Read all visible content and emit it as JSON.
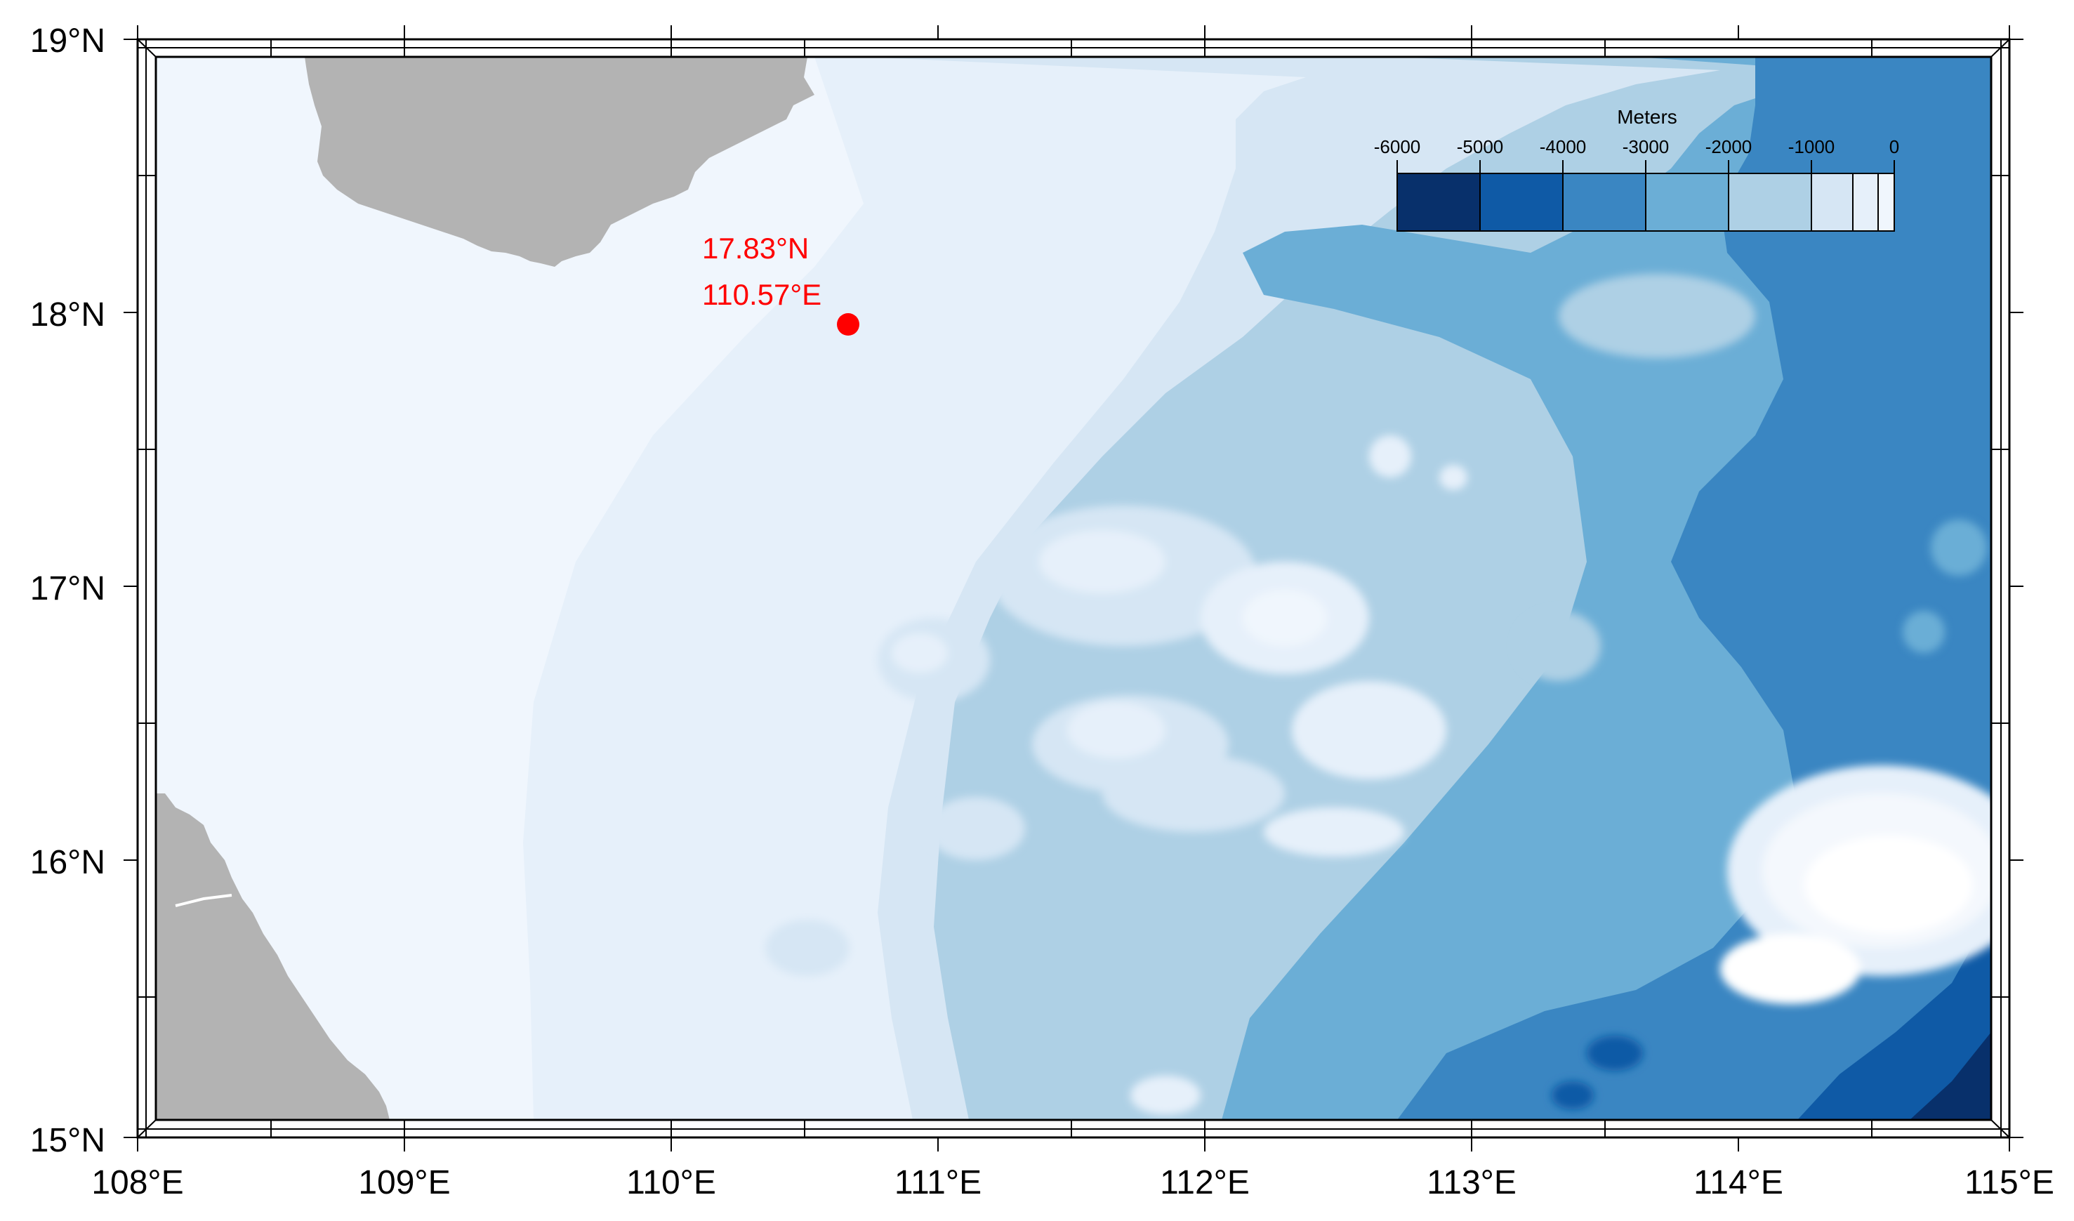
{
  "map": {
    "lat_labels": [
      "19°N",
      "18°N",
      "17°N",
      "16°N",
      "15°N"
    ],
    "lon_labels": [
      "108°E",
      "109°E",
      "110°E",
      "111°E",
      "112°E",
      "113°E",
      "114°E",
      "115°E"
    ],
    "extent": {
      "lon_min": 108,
      "lon_max": 115,
      "lat_min": 15,
      "lat_max": 19
    }
  },
  "marker": {
    "lat_label": "17.83°N",
    "lon_label": "110.57°E",
    "lat": 17.83,
    "lon": 110.57,
    "color": "#ff0000"
  },
  "colorbar": {
    "title": "Meters",
    "tick_labels": [
      "-6000",
      "-5000",
      "-4000",
      "-3000",
      "-2000",
      "-1000",
      "0"
    ],
    "bins": [
      {
        "range": "-6000 to -5000",
        "color": "#08306b"
      },
      {
        "range": "-5000 to -4000",
        "color": "#0f5aa6"
      },
      {
        "range": "-4000 to -3000",
        "color": "#3a86c2"
      },
      {
        "range": "-3000 to -2000",
        "color": "#6baed6"
      },
      {
        "range": "-2000 to -1000",
        "color": "#aed0e5"
      },
      {
        "range": "-1000 to -500",
        "color": "#d6e6f4"
      },
      {
        "range": "-500 to -200",
        "color": "#e6f0fa"
      },
      {
        "range": "-200 to 0",
        "color": "#f0f6fd"
      }
    ]
  },
  "colors": {
    "land": "#b3b3b3",
    "shelf": "#f0f6fd",
    "frame": "#000000"
  }
}
